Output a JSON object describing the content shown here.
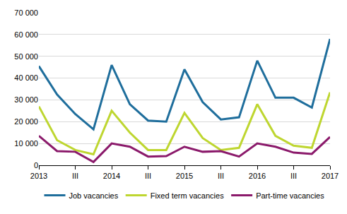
{
  "chart_data": {
    "type": "line",
    "categories": [
      "2013",
      null,
      "III",
      null,
      "2014",
      null,
      "III",
      null,
      "2015",
      null,
      "III",
      null,
      "2016",
      null,
      "III",
      null,
      "2017"
    ],
    "series": [
      {
        "name": "Job vacancies",
        "color": "#1f6e9c",
        "values": [
          45500,
          32500,
          23500,
          16500,
          46000,
          28000,
          20500,
          20000,
          44000,
          29000,
          21000,
          22000,
          48000,
          31000,
          31000,
          26500,
          58000
        ]
      },
      {
        "name": "Fixed term vacancies",
        "color": "#bed630",
        "values": [
          27000,
          11500,
          7000,
          5000,
          25000,
          15000,
          7000,
          7000,
          24000,
          12500,
          7000,
          8000,
          28000,
          13500,
          9000,
          8000,
          33500
        ]
      },
      {
        "name": "Part-time vacancies",
        "color": "#8b1a6b",
        "values": [
          13500,
          6500,
          6200,
          1500,
          10000,
          8500,
          4000,
          4200,
          8500,
          6200,
          6500,
          4000,
          10000,
          8500,
          5800,
          5200,
          13000
        ]
      }
    ],
    "ylim": [
      0,
      70000
    ],
    "yticks": [
      0,
      {
        "value": 10000,
        "label": "10 000"
      },
      {
        "value": 20000,
        "label": "20 000"
      },
      {
        "value": 30000,
        "label": "30 000"
      },
      {
        "value": 40000,
        "label": "40 000"
      },
      {
        "value": 50000,
        "label": "50 000"
      },
      {
        "value": 60000,
        "label": "60 000"
      },
      {
        "value": 70000,
        "label": "70 000"
      }
    ],
    "grid": true,
    "legend": "bottom"
  }
}
